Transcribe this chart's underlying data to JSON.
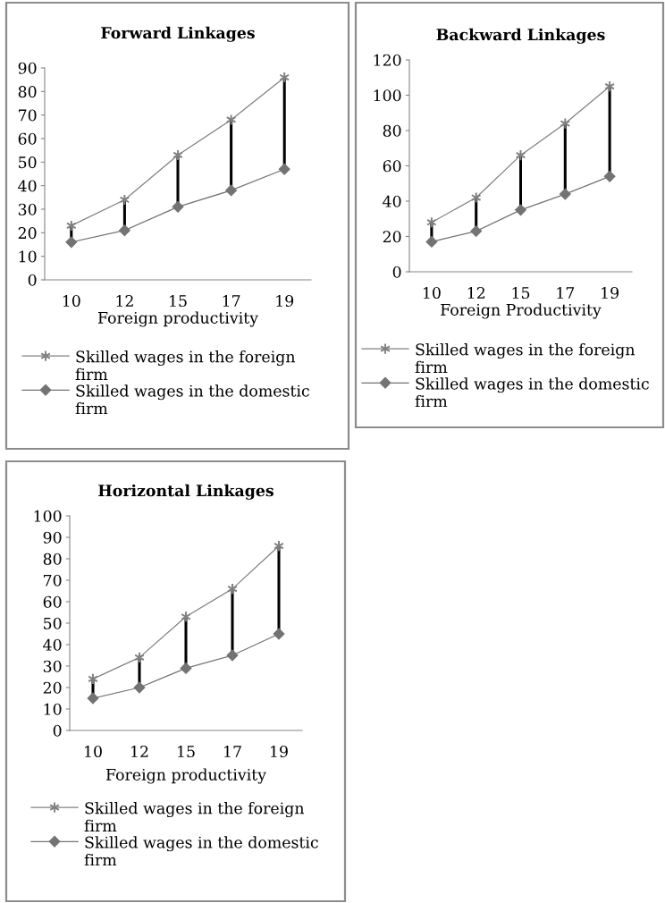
{
  "chart_data": [
    {
      "type": "line",
      "title": "Forward Linkages",
      "xlabel": "Foreign productivity",
      "categories": [
        "10",
        "12",
        "15",
        "17",
        "19"
      ],
      "series": [
        {
          "name": "Skilled wages in the foreign firm",
          "color": "#808080",
          "marker": "cross",
          "values": [
            23,
            34,
            53,
            68,
            86
          ]
        },
        {
          "name": "Skilled wages in the domestic firm",
          "color": "#737373",
          "marker": "diamond",
          "values": [
            16,
            21,
            31,
            38,
            47
          ],
          "errors": [
            [
              16,
              23
            ],
            [
              21,
              34
            ],
            [
              31,
              53
            ],
            [
              38,
              68
            ],
            [
              47,
              86
            ]
          ]
        }
      ],
      "ylim": [
        0,
        90
      ],
      "yticks": [
        0,
        10,
        20,
        30,
        40,
        50,
        60,
        70,
        80,
        90
      ],
      "legend": "bottom"
    },
    {
      "type": "line",
      "title": "Backward Linkages",
      "xlabel": "Foreign Productivity",
      "categories": [
        "10",
        "12",
        "15",
        "17",
        "19"
      ],
      "series": [
        {
          "name": "Skilled wages in the foreign firm",
          "color": "#808080",
          "marker": "cross",
          "values": [
            28,
            42,
            66,
            84,
            105
          ]
        },
        {
          "name": "Skilled wages in the domestic firm",
          "color": "#737373",
          "marker": "diamond",
          "values": [
            17,
            23,
            35,
            44,
            54
          ],
          "errors": [
            [
              17,
              28
            ],
            [
              23,
              42
            ],
            [
              35,
              66
            ],
            [
              44,
              84
            ],
            [
              54,
              105
            ]
          ]
        }
      ],
      "ylim": [
        0,
        120
      ],
      "yticks": [
        0,
        20,
        40,
        60,
        80,
        100,
        120
      ],
      "legend": "bottom"
    },
    {
      "type": "line",
      "title": "Horizontal Linkages",
      "xlabel": "Foreign productivity",
      "categories": [
        "10",
        "12",
        "15",
        "17",
        "19"
      ],
      "series": [
        {
          "name": "Skilled wages in the foreign firm",
          "color": "#808080",
          "marker": "cross",
          "values": [
            24,
            34,
            53,
            66,
            86
          ]
        },
        {
          "name": "Skilled wages in the domestic firm",
          "color": "#737373",
          "marker": "diamond",
          "values": [
            15,
            20,
            29,
            35,
            45
          ],
          "errors": [
            [
              15,
              24
            ],
            [
              20,
              34
            ],
            [
              29,
              53
            ],
            [
              35,
              66
            ],
            [
              45,
              86
            ]
          ]
        }
      ],
      "ylim": [
        0,
        100
      ],
      "yticks": [
        0,
        10,
        20,
        30,
        40,
        50,
        60,
        70,
        80,
        90,
        100
      ],
      "legend": "bottom"
    }
  ]
}
